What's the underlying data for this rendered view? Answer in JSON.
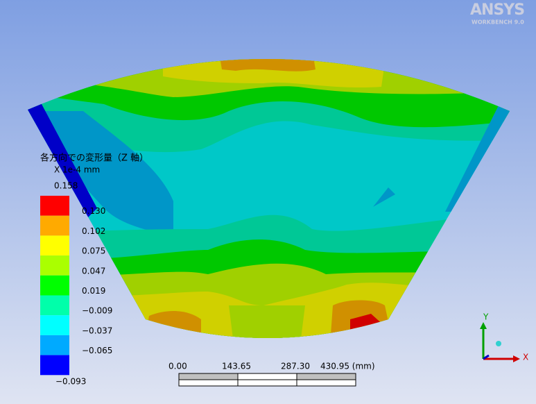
{
  "logo": {
    "brand": "ANSYS",
    "product": "WORKBENCH 9.0"
  },
  "legend": {
    "title": "各方向での変形量（Z 軸）",
    "unit": "X 1e-4 mm",
    "labels": [
      "0.158",
      "0.130",
      "0.102",
      "0.075",
      "0.047",
      "0.019",
      "−0.009",
      "−0.037",
      "−0.065",
      "−0.093"
    ],
    "colors": [
      "#ff0000",
      "#ffaa00",
      "#ffff00",
      "#aaff00",
      "#00ff00",
      "#00ffaa",
      "#00ffff",
      "#00aaff",
      "#0000ff"
    ]
  },
  "scale_bar": {
    "labels": [
      "0.00",
      "143.65",
      "287.30",
      "430.95 (mm)"
    ]
  },
  "triad": {
    "x": "X",
    "y": "Y"
  }
}
